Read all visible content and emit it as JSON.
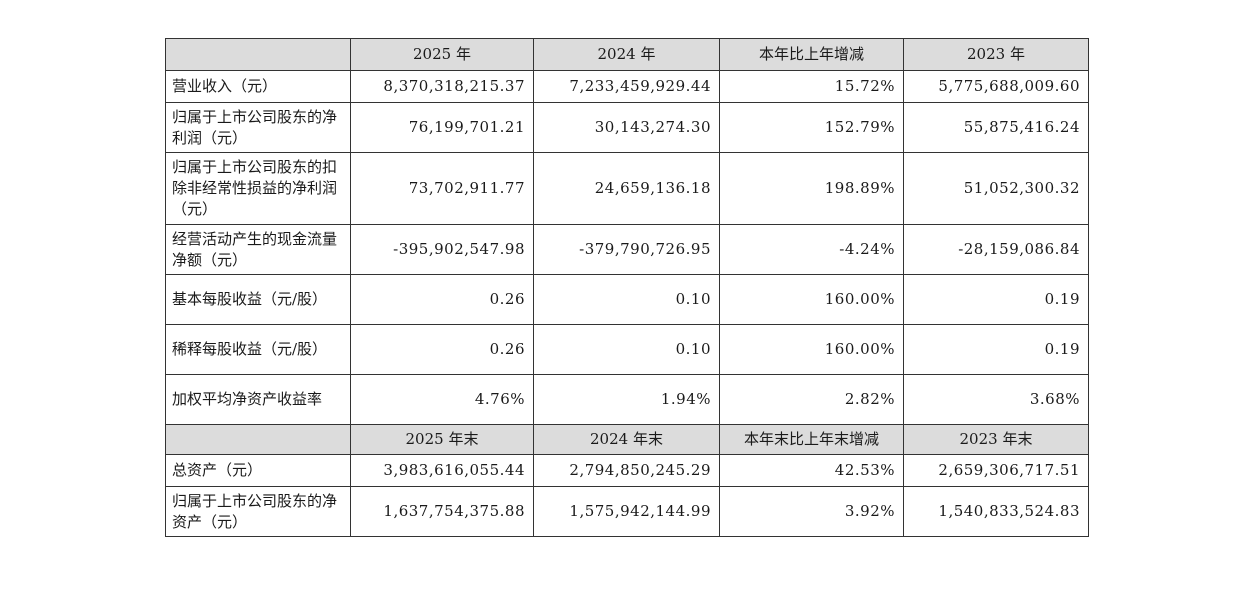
{
  "header1": [
    "",
    "2025 年",
    "2024 年",
    "本年比上年增减",
    "2023 年"
  ],
  "header2": [
    "",
    "2025 年末",
    "2024 年末",
    "本年末比上年末增减",
    "2023 年末"
  ],
  "rows1": [
    {
      "label": "营业收入（元）",
      "values": [
        "8,370,318,215.37",
        "7,233,459,929.44",
        "15.72%",
        "5,775,688,009.60"
      ]
    },
    {
      "label": "归属于上市公司股东的净利润（元）",
      "values": [
        "76,199,701.21",
        "30,143,274.30",
        "152.79%",
        "55,875,416.24"
      ]
    },
    {
      "label": "归属于上市公司股东的扣除非经常性损益的净利润（元）",
      "values": [
        "73,702,911.77",
        "24,659,136.18",
        "198.89%",
        "51,052,300.32"
      ]
    },
    {
      "label": "经营活动产生的现金流量净额（元）",
      "values": [
        "-395,902,547.98",
        "-379,790,726.95",
        "-4.24%",
        "-28,159,086.84"
      ]
    },
    {
      "label": "基本每股收益（元/股）",
      "values": [
        "0.26",
        "0.10",
        "160.00%",
        "0.19"
      ]
    },
    {
      "label": "稀释每股收益（元/股）",
      "values": [
        "0.26",
        "0.10",
        "160.00%",
        "0.19"
      ]
    },
    {
      "label": "加权平均净资产收益率",
      "values": [
        "4.76%",
        "1.94%",
        "2.82%",
        "3.68%"
      ]
    }
  ],
  "rows2": [
    {
      "label": "总资产（元）",
      "values": [
        "3,983,616,055.44",
        "2,794,850,245.29",
        "42.53%",
        "2,659,306,717.51"
      ]
    },
    {
      "label": "归属于上市公司股东的净资产（元）",
      "values": [
        "1,637,754,375.88",
        "1,575,942,144.99",
        "3.92%",
        "1,540,833,524.83"
      ]
    }
  ]
}
